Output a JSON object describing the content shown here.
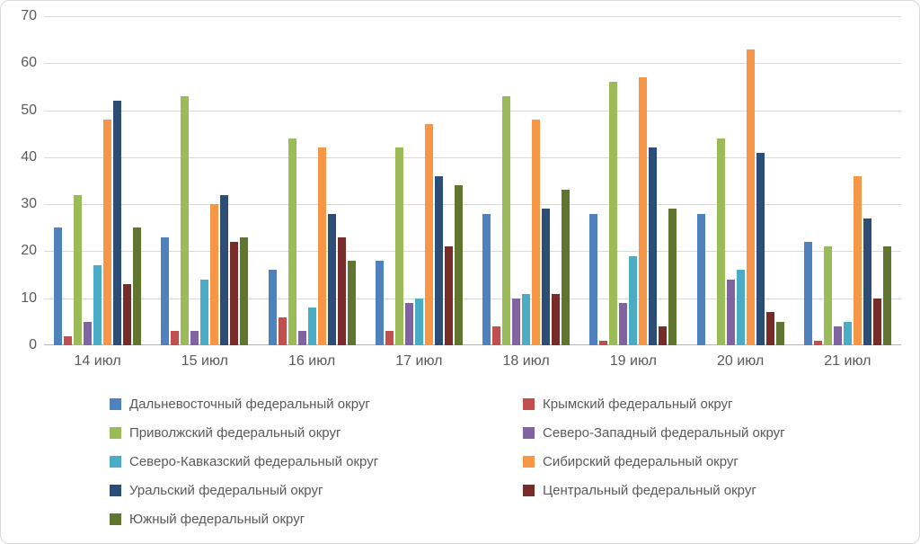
{
  "ui": {
    "background_color": "#FFFFFF",
    "frame_border_color": "#D9D9D9",
    "grid_color": "#D9D9D9",
    "axis_line_color": "#B3B3B3",
    "text_color": "#595959"
  },
  "chart_data": {
    "type": "bar",
    "title": "",
    "xlabel": "",
    "ylabel": "",
    "grid": true,
    "legend_position": "bottom",
    "y_axis": {
      "min": 0,
      "max": 70,
      "step": 10,
      "ticks": [
        0,
        10,
        20,
        30,
        40,
        50,
        60,
        70
      ]
    },
    "categories": [
      "14 июл",
      "15 июл",
      "16 июл",
      "17 июл",
      "18 июл",
      "19 июл",
      "20 июл",
      "21 июл"
    ],
    "series": [
      {
        "name": "Дальневосточный федеральный округ",
        "color": "#4F81BD",
        "values": [
          25,
          23,
          16,
          18,
          28,
          28,
          28,
          22
        ]
      },
      {
        "name": "Крымский федеральный округ",
        "color": "#C0504D",
        "values": [
          2,
          3,
          6,
          3,
          4,
          1,
          0,
          1
        ]
      },
      {
        "name": "Приволжский федеральный округ",
        "color": "#9BBB59",
        "values": [
          32,
          53,
          44,
          42,
          53,
          56,
          44,
          21
        ]
      },
      {
        "name": "Северо-Западный федеральный округ",
        "color": "#8064A2",
        "values": [
          5,
          3,
          3,
          9,
          10,
          9,
          14,
          4
        ]
      },
      {
        "name": "Северо-Кавказский федеральный округ",
        "color": "#4BACC6",
        "values": [
          17,
          14,
          8,
          10,
          11,
          19,
          16,
          5
        ]
      },
      {
        "name": "Сибирский федеральный округ",
        "color": "#F79646",
        "values": [
          48,
          30,
          42,
          47,
          48,
          57,
          63,
          36
        ]
      },
      {
        "name": "Уральский федеральный округ",
        "color": "#2C4D75",
        "values": [
          52,
          32,
          28,
          36,
          29,
          42,
          41,
          27
        ]
      },
      {
        "name": "Центральный федеральный округ",
        "color": "#772C2A",
        "values": [
          13,
          22,
          23,
          21,
          11,
          4,
          7,
          10
        ]
      },
      {
        "name": "Южный федеральный округ",
        "color": "#5F7530",
        "values": [
          25,
          23,
          18,
          34,
          33,
          29,
          5,
          21
        ]
      }
    ]
  }
}
